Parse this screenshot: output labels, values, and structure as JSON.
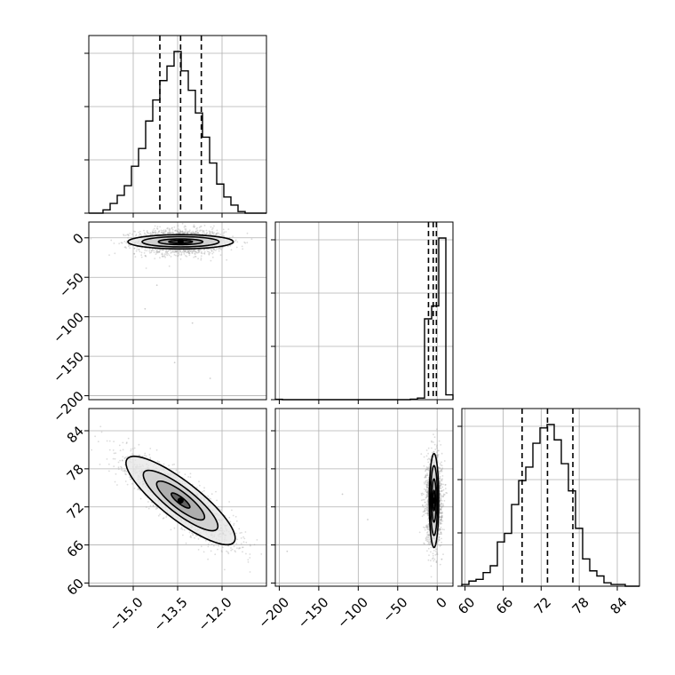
{
  "chart_data": {
    "type": "corner",
    "grid": true,
    "colors": {
      "line": "#000000",
      "grid": "#b0b0b0",
      "scatter": "#9a9a9a",
      "shade_light": "#e6e6e6",
      "shade_mid": "#a8a8a8",
      "shade_dark": "#555555"
    },
    "parameters": [
      {
        "index": 0,
        "range": [
          -16.5,
          -10.5
        ],
        "ticks": [
          -15.0,
          -13.5,
          -12.0
        ],
        "tick_labels": [
          "−15.0",
          "−13.5",
          "−12.0"
        ],
        "quantiles": [
          -14.1,
          -13.4,
          -12.7
        ]
      },
      {
        "index": 1,
        "range": [
          -205,
          20
        ],
        "ticks": [
          -200,
          -150,
          -100,
          -50,
          0
        ],
        "tick_labels": [
          "−200",
          "−150",
          "−100",
          "−50",
          "0"
        ],
        "quantiles": [
          -11,
          -5,
          -1
        ]
      },
      {
        "index": 2,
        "range": [
          59.5,
          87.5
        ],
        "ticks": [
          60,
          66,
          72,
          78,
          84
        ],
        "tick_labels": [
          "60",
          "66",
          "72",
          "78",
          "84"
        ],
        "quantiles": [
          69.0,
          73.0,
          77.0
        ]
      }
    ],
    "histograms": [
      {
        "param": 0,
        "bin_edges": [
          -16.5,
          -16.26,
          -16.02,
          -15.78,
          -15.54,
          -15.3,
          -15.06,
          -14.82,
          -14.58,
          -14.34,
          -14.1,
          -13.86,
          -13.62,
          -13.38,
          -13.14,
          -12.9,
          -12.66,
          -12.42,
          -12.18,
          -11.94,
          -11.7,
          -11.46,
          -11.22,
          -10.98,
          -10.74,
          -10.5
        ],
        "counts": [
          0,
          0,
          2,
          6,
          11,
          17,
          29,
          40,
          57,
          70,
          82,
          91,
          100,
          88,
          76,
          62,
          47,
          31,
          18,
          10,
          5,
          1,
          0,
          0,
          0
        ]
      },
      {
        "param": 1,
        "bin_edges": [
          -205,
          -196,
          -187,
          -178,
          -169,
          -160,
          -151,
          -142,
          -133,
          -124,
          -115,
          -106,
          -97,
          -88,
          -79,
          -70,
          -61,
          -52,
          -43,
          -34,
          -25,
          -16,
          -7,
          2,
          11,
          20
        ],
        "counts": [
          0.2,
          0,
          0,
          0,
          0,
          0,
          0,
          0,
          0,
          0,
          0,
          0,
          0,
          0,
          0,
          0,
          0,
          0,
          0,
          0.3,
          1.0,
          50,
          58,
          100,
          3
        ]
      },
      {
        "param": 2,
        "bin_edges": [
          59.5,
          60.62,
          61.74,
          62.86,
          63.98,
          65.1,
          66.22,
          67.34,
          68.46,
          69.58,
          70.7,
          71.82,
          72.94,
          74.06,
          75.18,
          76.3,
          77.42,
          78.54,
          79.66,
          80.78,
          81.9,
          83.02,
          84.14,
          85.26,
          86.38,
          87.5
        ],
        "counts": [
          1,
          3,
          4,
          8,
          12,
          26,
          31,
          48,
          62,
          70,
          84,
          93,
          95,
          86,
          72,
          56,
          34,
          16,
          9,
          6,
          2,
          1,
          1,
          0,
          0
        ]
      }
    ],
    "joint": [
      {
        "x_param": 0,
        "y_param": 1,
        "center": [
          -13.4,
          -5
        ],
        "sd": [
          0.75,
          8
        ],
        "corr": 0.0,
        "contour_half_widths": [
          [
            0.4,
            1.8
          ],
          [
            0.75,
            3.6
          ],
          [
            1.3,
            6.5
          ],
          [
            1.78,
            9.0
          ]
        ]
      },
      {
        "x_param": 0,
        "y_param": 2,
        "center": [
          -13.4,
          73.0
        ],
        "sd": [
          0.9,
          3.4
        ],
        "corr": -0.85,
        "contour_levels_sigma": [
          0.35,
          0.9,
          1.4,
          2.05
        ]
      },
      {
        "x_param": 1,
        "y_param": 2,
        "center": [
          -4,
          73.0
        ],
        "sd": [
          5,
          3.4
        ],
        "corr": 0.0,
        "contour_half_widths": [
          [
            1.3,
            1.6
          ],
          [
            2.8,
            3.4
          ],
          [
            4.4,
            5.5
          ],
          [
            6.0,
            7.4
          ]
        ]
      }
    ],
    "outliers": [
      {
        "x_param": 0,
        "y_param": 1,
        "points": [
          [
            -14.2,
            -60
          ],
          [
            -13.0,
            -108
          ],
          [
            -13.6,
            -158
          ],
          [
            -12.4,
            -178
          ],
          [
            -14.6,
            -90
          ]
        ]
      },
      {
        "x_param": 1,
        "y_param": 2,
        "points": [
          [
            -190,
            65
          ],
          [
            -120,
            74
          ],
          [
            -88,
            70
          ]
        ]
      }
    ]
  }
}
